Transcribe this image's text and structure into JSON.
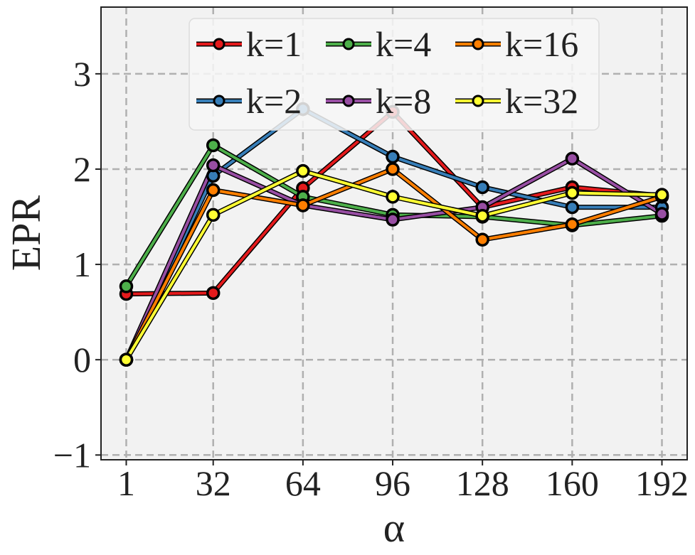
{
  "chart_data": {
    "type": "line",
    "xlabel": "α",
    "ylabel": "EPR",
    "x": [
      1,
      32,
      64,
      96,
      128,
      160,
      192
    ],
    "x_tick_labels": [
      "1",
      "32",
      "64",
      "96",
      "128",
      "160",
      "192"
    ],
    "y_ticks": [
      -1,
      0,
      1,
      2,
      3
    ],
    "y_tick_labels": [
      "−1",
      "0",
      "1",
      "2",
      "3"
    ],
    "xlim": [
      -8,
      201
    ],
    "ylim": [
      -1.05,
      3.7
    ],
    "grid": true,
    "legend_position": "top-center",
    "background": "#f2f2f2",
    "series": [
      {
        "name": "k=1",
        "color": "#e41a1c",
        "values": [
          0.69,
          0.7,
          1.8,
          2.6,
          1.6,
          1.81,
          1.72
        ]
      },
      {
        "name": "k=2",
        "color": "#377eb8",
        "values": [
          0.0,
          1.93,
          2.63,
          2.13,
          1.81,
          1.6,
          1.6
        ]
      },
      {
        "name": "k=4",
        "color": "#4daf4a",
        "values": [
          0.77,
          2.25,
          1.71,
          1.52,
          1.5,
          1.41,
          1.51
        ]
      },
      {
        "name": "k=8",
        "color": "#984ea3",
        "values": [
          0.0,
          2.04,
          1.62,
          1.47,
          1.6,
          2.11,
          1.53
        ]
      },
      {
        "name": "k=16",
        "color": "#ff7f00",
        "values": [
          0.0,
          1.78,
          1.62,
          2.0,
          1.26,
          1.42,
          1.71
        ]
      },
      {
        "name": "k=32",
        "color": "#ffff33",
        "values": [
          0.0,
          1.52,
          1.98,
          1.71,
          1.51,
          1.75,
          1.73
        ]
      }
    ]
  }
}
